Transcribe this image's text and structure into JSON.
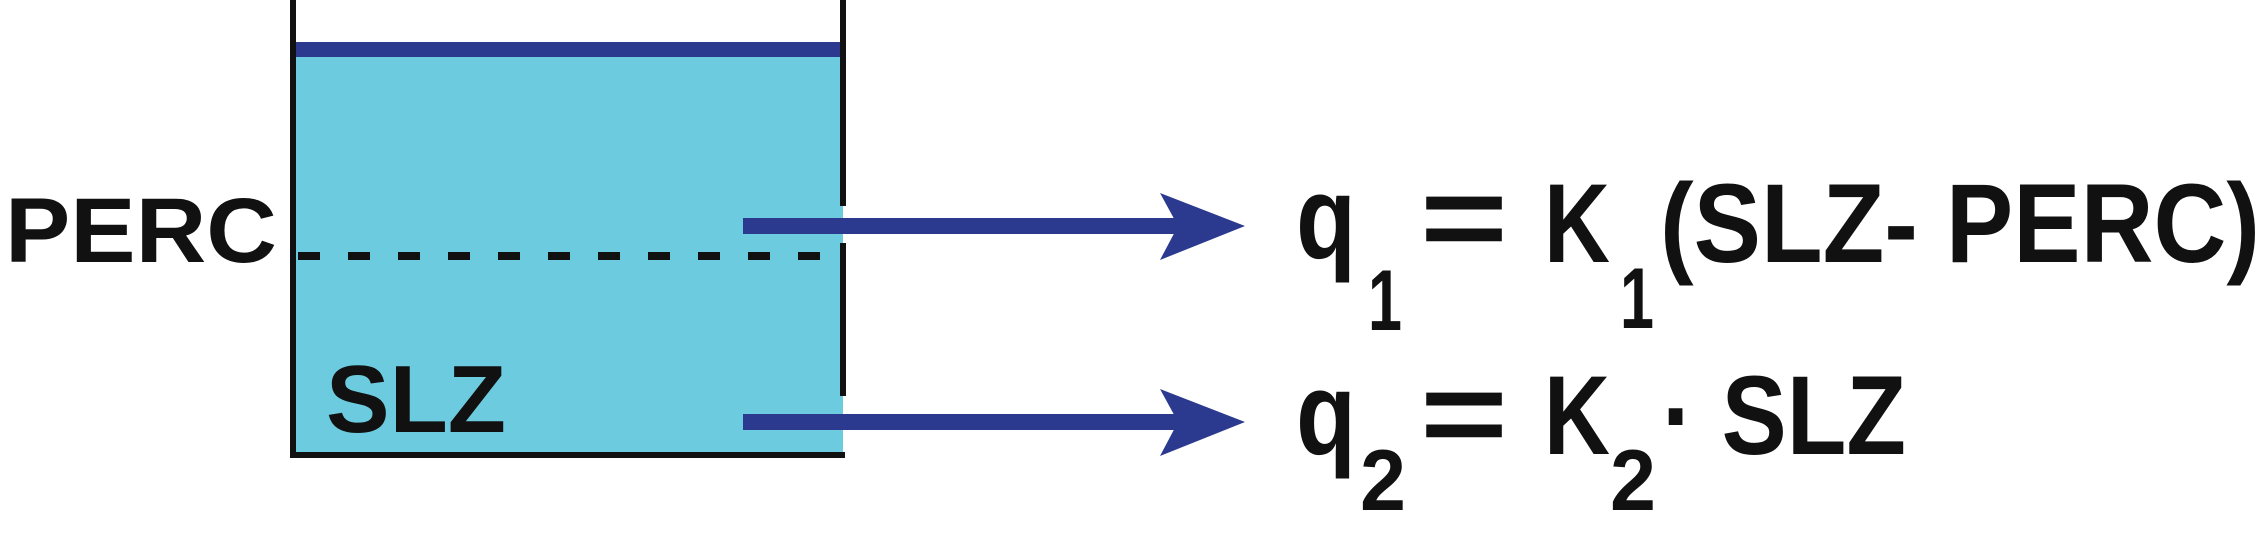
{
  "colors": {
    "water": "#6ccbde",
    "arrow": "#2b3a8f",
    "ink": "#111111",
    "background": "#ffffff"
  },
  "labels": {
    "threshold": "PERC",
    "storage": "SLZ"
  },
  "equations": {
    "q1": {
      "flow": "q",
      "flow_sub": "1",
      "equals": "=",
      "coef": "K",
      "coef_sub": "1",
      "rhs": "(SLZ- PERC)"
    },
    "q2": {
      "flow": "q",
      "flow_sub": "2",
      "equals": "=",
      "coef": "K",
      "coef_sub": "2",
      "rhs": "· SLZ"
    }
  }
}
